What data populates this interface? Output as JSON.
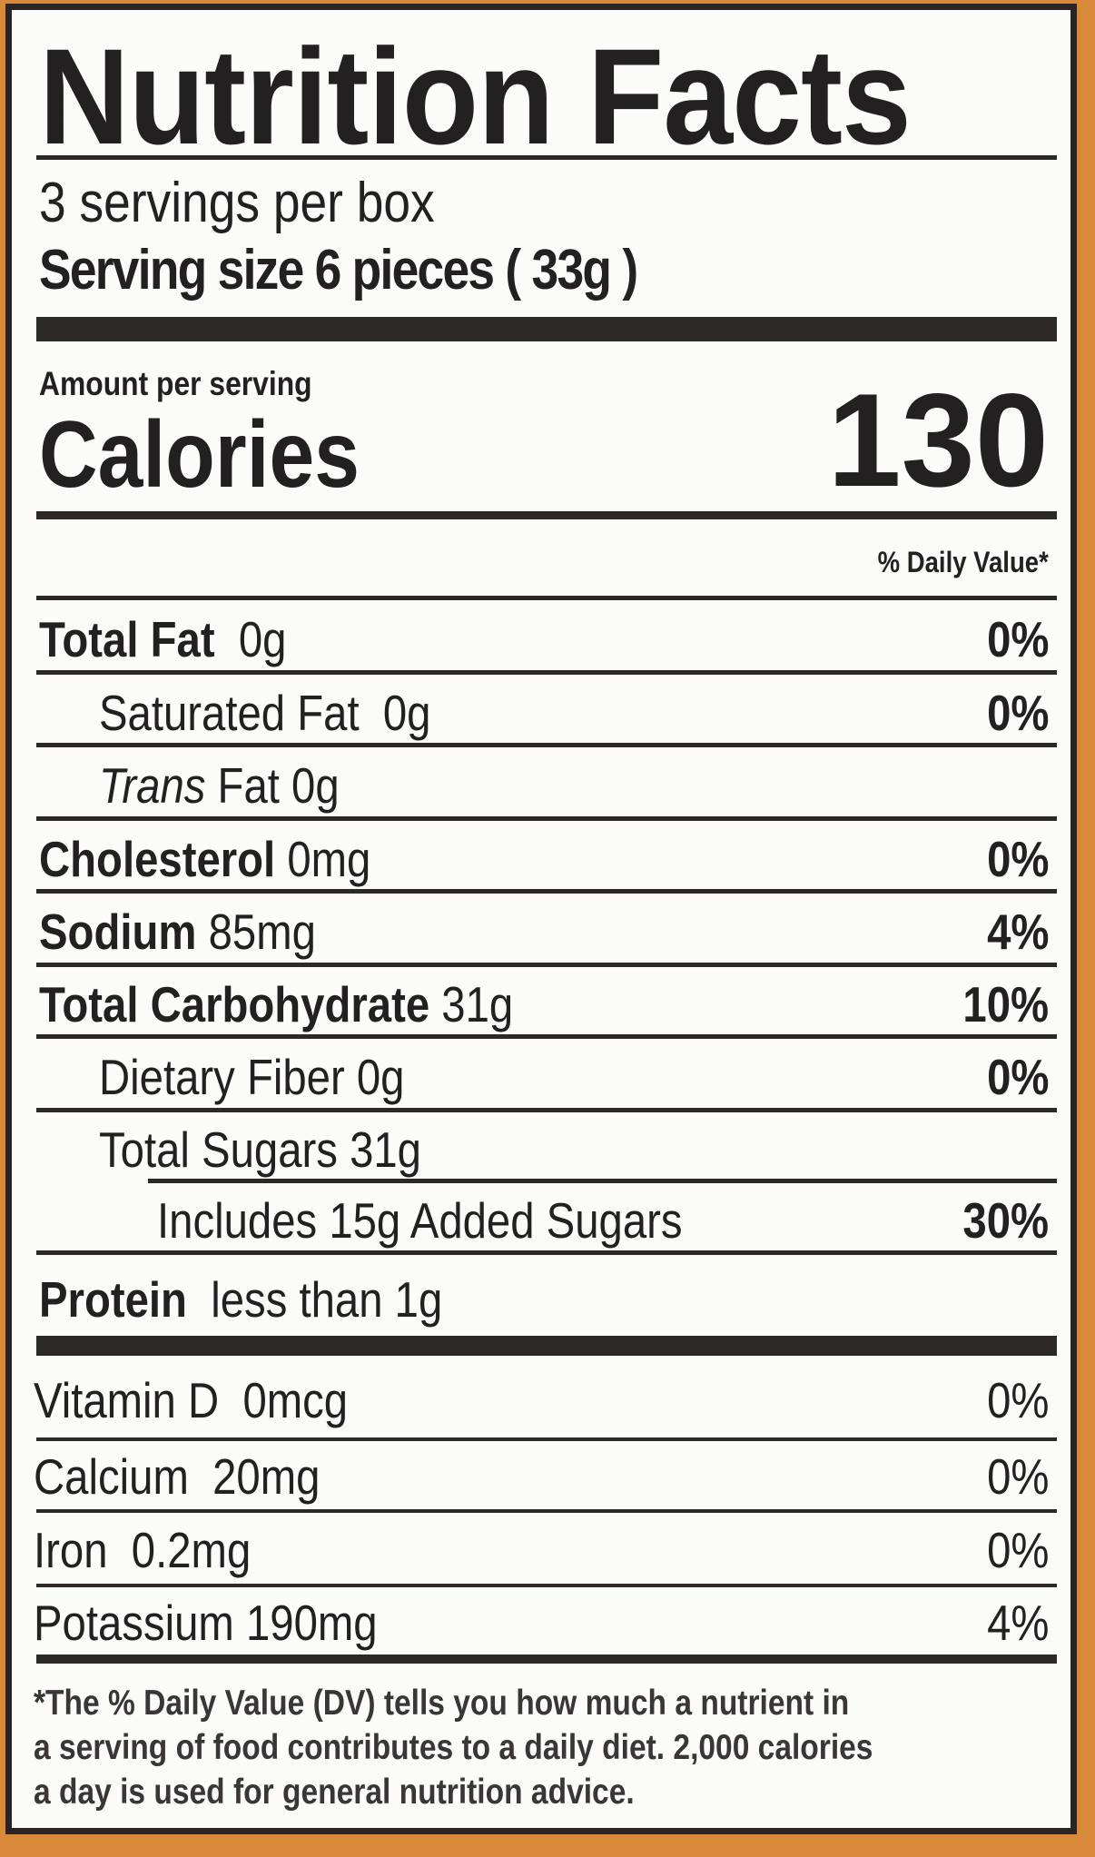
{
  "title": "Nutrition Facts",
  "servings_per_container": "3 servings per box",
  "serving_size": "Serving size 6 pieces ( 33g )",
  "amount_per_serving": "Amount per serving",
  "calories_label": "Calories",
  "calories_value": "130",
  "daily_value_header": "% Daily Value*",
  "nutrients": [
    {
      "bold": "Total Fat",
      "text": "  0g",
      "dv": "0%",
      "indent": 0
    },
    {
      "bold": "",
      "text": "Saturated Fat  0g",
      "dv": "0%",
      "indent": 1
    },
    {
      "bold": "",
      "italic": "Trans",
      "text": " Fat 0g",
      "dv": "",
      "indent": 1
    },
    {
      "bold": "Cholesterol",
      "text": " 0mg",
      "dv": "0%",
      "indent": 0
    },
    {
      "bold": "Sodium",
      "text": " 85mg",
      "dv": "4%",
      "indent": 0
    },
    {
      "bold": "Total Carbohydrate",
      "text": " 31g",
      "dv": "10%",
      "indent": 0
    },
    {
      "bold": "",
      "text": "Dietary Fiber 0g",
      "dv": "0%",
      "indent": 1
    },
    {
      "bold": "",
      "text": "Total Sugars 31g",
      "dv": "",
      "indent": 1
    },
    {
      "bold": "",
      "text": "Includes 15g Added Sugars",
      "dv": "30%",
      "indent": 2
    },
    {
      "bold": "Protein",
      "text": "  less than 1g",
      "dv": "",
      "indent": 0
    }
  ],
  "vitamins": [
    {
      "text": "Vitamin D  0mcg",
      "dv": "0%"
    },
    {
      "text": "Calcium  20mg",
      "dv": "0%"
    },
    {
      "text": "Iron  0.2mg",
      "dv": "0%"
    },
    {
      "text": "Potassium 190mg",
      "dv": "4%"
    }
  ],
  "footnote": [
    "*The % Daily Value (DV) tells you how much a nutrient in",
    "a serving of food contributes to a daily diet. 2,000 calories",
    "a day is used for general nutrition advice."
  ],
  "colors": {
    "background": "#d88a3a",
    "label": "#fbfbfa",
    "ink": "#232022"
  }
}
